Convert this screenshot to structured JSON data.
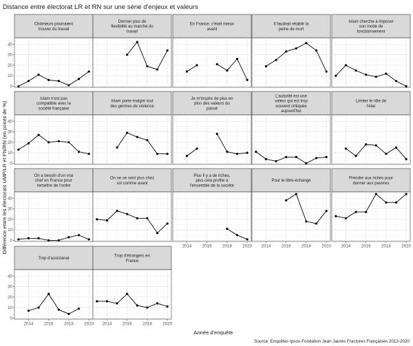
{
  "chart_data": {
    "type": "line",
    "title": "Distance entre électorat LR et RN sur une série d'enjeux et valeurs",
    "xlabel": "Année d'enquête",
    "ylabel": "Différence entre les électorats UMP/LR et FN/RN (en points de %)",
    "caption": "Source: Enquêtes Ipsos-Fondation Jean Jaurès Fractures Françaises 2013-2020",
    "x": [
      2013,
      2014,
      2015,
      2016,
      2017,
      2018,
      2019,
      2020
    ],
    "xlim": [
      2012.6,
      2020.4
    ],
    "ylim": [
      -1,
      46
    ],
    "x_ticks": [
      2014,
      2016,
      2018,
      2020
    ],
    "y_ticks": [
      0,
      10,
      20,
      30,
      40
    ],
    "panels": [
      {
        "label": "Chômeurs pourraient trouver du travail",
        "values": [
          0,
          5,
          11,
          6,
          5,
          1,
          7,
          14
        ]
      },
      {
        "label": "Donner plus de flexibilité au marché du travail",
        "values": [
          null,
          null,
          null,
          30,
          42,
          19,
          16,
          34
        ]
      },
      {
        "label": "En France, c'était mieux avant",
        "values": [
          null,
          14,
          20,
          null,
          21,
          15,
          26,
          6
        ]
      },
      {
        "label": "Il faudrait rétablir la peine de mort",
        "values": [
          null,
          19,
          25,
          33,
          36,
          41,
          34,
          14
        ]
      },
      {
        "label": "Islam cherche à imposer son mode de fonctionnement",
        "values": [
          10,
          20,
          15,
          11,
          9,
          12,
          5,
          0
        ]
      },
      {
        "label": "Islam n'est pas compatible avec la société française",
        "values": [
          13,
          19,
          27,
          20,
          21,
          20,
          11,
          9
        ]
      },
      {
        "label": "Islam porte malgré tout des germes de violence",
        "values": [
          null,
          null,
          15,
          29,
          25,
          22,
          9,
          9
        ]
      },
      {
        "label": "Je m'inspire de plus en plus des valeurs du passé",
        "values": [
          null,
          7,
          14,
          null,
          28,
          11,
          9,
          10
        ]
      },
      {
        "label": "L'autorité est une valeur qui est trop souvent critiquée aujourd'hui",
        "values": [
          11,
          4,
          2,
          6,
          6,
          0,
          5,
          6
        ]
      },
      {
        "label": "Limiter le rôle de l'état",
        "values": [
          null,
          14,
          7,
          18,
          17,
          9,
          15,
          4
        ]
      },
      {
        "label": "On a besoin d'un vrai chef en France pour remettre de l'ordre",
        "values": [
          1,
          2,
          2,
          0,
          0,
          3,
          5,
          1
        ]
      },
      {
        "label": "On ne se sent plus chez soi comme avant",
        "values": [
          20,
          19,
          28,
          25,
          21,
          21,
          7,
          16
        ]
      },
      {
        "label": "Plus il y a de riches, plus cela profite à l'ensemble de la société",
        "values": [
          null,
          null,
          null,
          null,
          null,
          11,
          5,
          1
        ]
      },
      {
        "label": "Pour le libre-échange",
        "values": [
          null,
          null,
          null,
          38,
          44,
          18,
          16,
          28
        ]
      },
      {
        "label": "Prendre aux riches pour donner aux pauvres",
        "values": [
          23,
          21,
          27,
          27,
          44,
          36,
          36,
          44
        ]
      },
      {
        "label": "Trop d'assistanat",
        "values": [
          null,
          7,
          10,
          23,
          8,
          4,
          9,
          null
        ]
      },
      {
        "label": "Trop d'étrangers en France",
        "values": [
          16,
          16,
          14,
          23,
          12,
          10,
          14,
          11
        ]
      }
    ]
  }
}
